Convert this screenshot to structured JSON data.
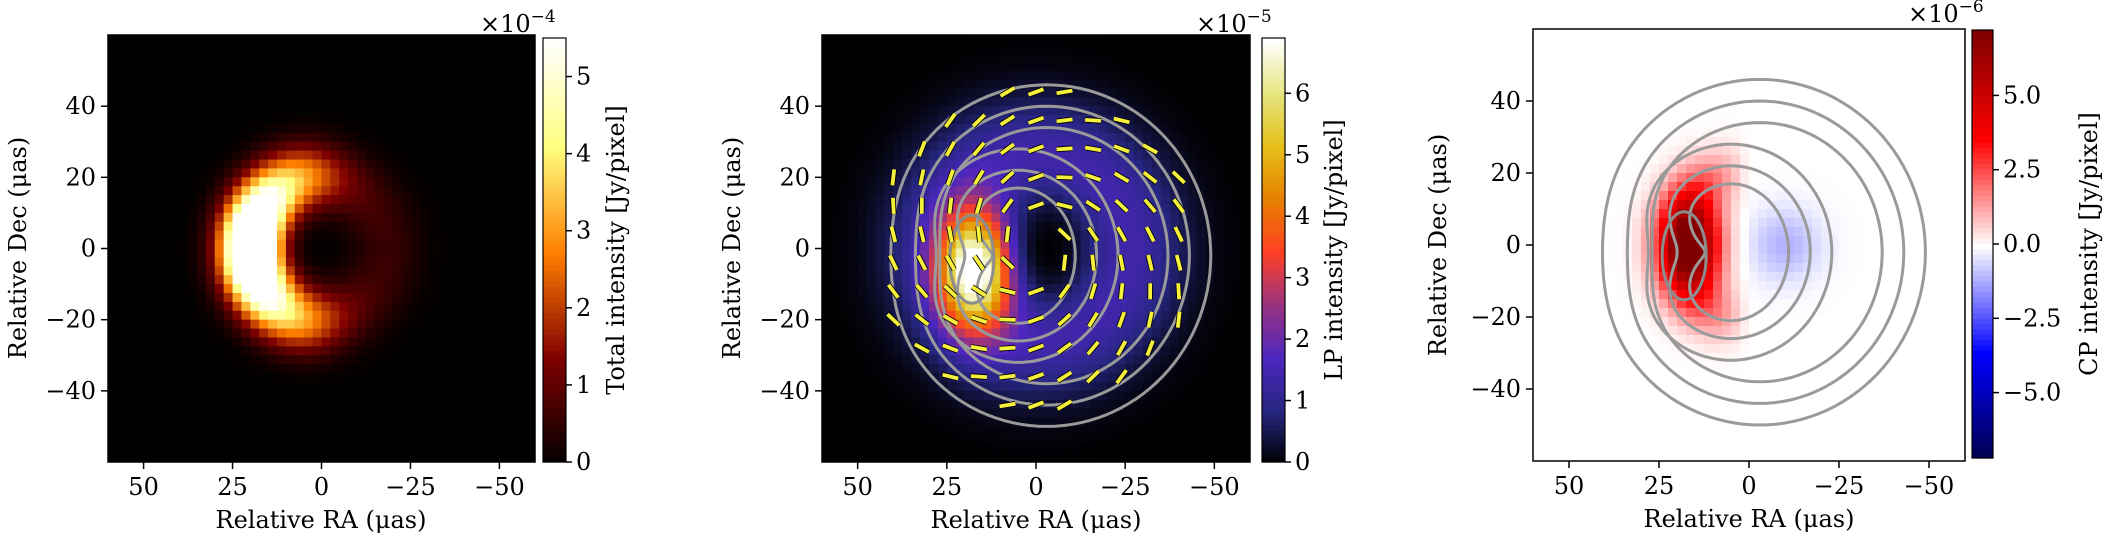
{
  "chart_data": [
    {
      "type": "heatmap",
      "colormap": "afmhot",
      "xlabel": "Relative RA (μas)",
      "ylabel": "Relative Dec (μas)",
      "xlim": [
        60,
        -60
      ],
      "ylim": [
        -60,
        60
      ],
      "xticks": [
        50,
        25,
        0,
        -25,
        -50
      ],
      "xtick_labels": [
        "50",
        "25",
        "0",
        "−25",
        "−50"
      ],
      "yticks": [
        40,
        20,
        0,
        -20,
        -40
      ],
      "ytick_labels": [
        "40",
        "20",
        "0",
        "−20",
        "−40"
      ],
      "colorbar": {
        "label": "Total intensity [Jy/pixel]",
        "multiplier": "×10",
        "multiplier_exp": "−4",
        "vmin": 0,
        "vmax": 5.5,
        "ticks": [
          0,
          1,
          2,
          3,
          4,
          5
        ],
        "tick_labels": [
          "0",
          "1",
          "2",
          "3",
          "4",
          "5"
        ]
      },
      "features": {
        "ring_center": [
          0,
          0
        ],
        "ring_radius": 22,
        "brightest_region": "left (east) side at about RA 20, Dec 0",
        "peak": 5.4
      }
    },
    {
      "type": "heatmap",
      "colormap": "CMRmap",
      "xlabel": "Relative RA (μas)",
      "ylabel": "Relative Dec (μas)",
      "xlim": [
        60,
        -60
      ],
      "ylim": [
        -60,
        60
      ],
      "xticks": [
        50,
        25,
        0,
        -25,
        -50
      ],
      "xtick_labels": [
        "50",
        "25",
        "0",
        "−25",
        "−50"
      ],
      "yticks": [
        40,
        20,
        0,
        -20,
        -40
      ],
      "ytick_labels": [
        "40",
        "20",
        "0",
        "−20",
        "−40"
      ],
      "colorbar": {
        "label": "LP intensity [Jy/pixel]",
        "multiplier": "×10",
        "multiplier_exp": "−5",
        "vmin": 0,
        "vmax": 6.9,
        "ticks": [
          0,
          1,
          2,
          3,
          4,
          5,
          6
        ],
        "tick_labels": [
          "0",
          "1",
          "2",
          "3",
          "4",
          "5",
          "6"
        ]
      },
      "overlays": [
        "total intensity contours (gray)",
        "EVPA ticks (yellow)"
      ],
      "features": {
        "peak_region": "left (east) side at about RA 15, Dec -8",
        "peak": 6.6
      }
    },
    {
      "type": "heatmap",
      "colormap": "bwr",
      "xlabel": "Relative RA (μas)",
      "ylabel": "Relative Dec (μas)",
      "xlim": [
        60,
        -60
      ],
      "ylim": [
        -60,
        60
      ],
      "xticks": [
        50,
        25,
        0,
        -25,
        -50
      ],
      "xtick_labels": [
        "50",
        "25",
        "0",
        "−25",
        "−50"
      ],
      "yticks": [
        40,
        20,
        0,
        -20,
        -40
      ],
      "ytick_labels": [
        "40",
        "20",
        "0",
        "−20",
        "−40"
      ],
      "colorbar": {
        "label": "CP intensity [Jy/pixel]",
        "multiplier": "×10",
        "multiplier_exp": "−6",
        "vmin": -7.2,
        "vmax": 7.2,
        "ticks": [
          5.0,
          2.5,
          0.0,
          -2.5,
          -5.0
        ],
        "tick_labels": [
          "5.0",
          "2.5",
          "0.0",
          "−2.5",
          "−5.0"
        ]
      },
      "overlays": [
        "total intensity contours (gray)"
      ],
      "features": {
        "positive_region": "left (east) side at about RA 15, Dec 0, value about 7",
        "negative_region": "weak, right of center at about RA -10, Dec 0, value about -1"
      }
    }
  ]
}
